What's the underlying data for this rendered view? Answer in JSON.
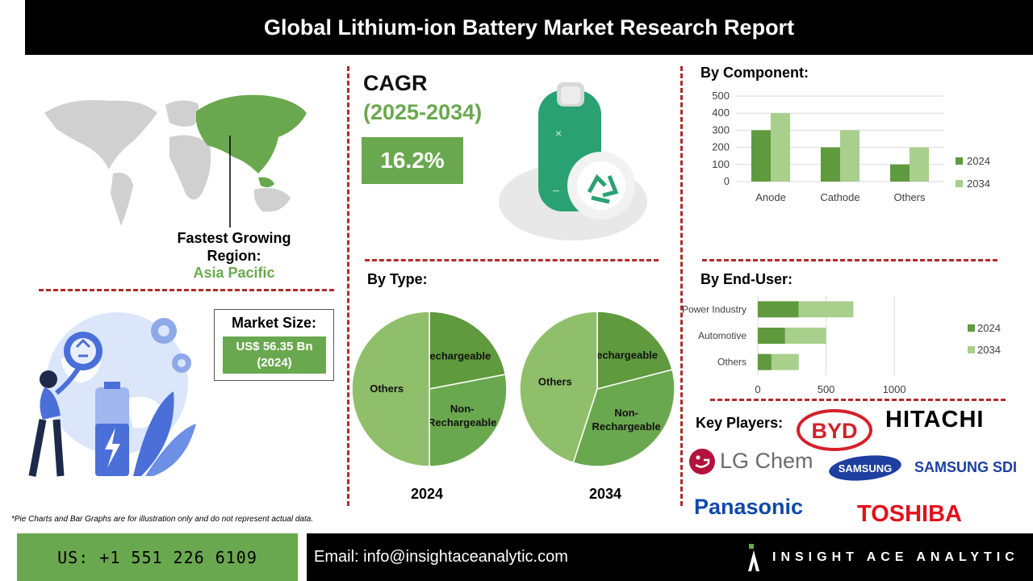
{
  "header": {
    "title": "Global Lithium-ion Battery Market Research Report"
  },
  "region": {
    "label": "Fastest Growing Region:",
    "value": "Asia Pacific"
  },
  "cagr": {
    "label": "CAGR",
    "years": "(2025-2034)",
    "value": "16.2%"
  },
  "market_size": {
    "label": "Market Size:",
    "value_line1": "US$ 56.35 Bn",
    "value_line2": "(2024)"
  },
  "disclaimer": "*Pie Charts and Bar Graphs are for illustration only and do not represent actual data.",
  "footer": {
    "phone": "US: +1 551 226 6109",
    "email": "Email: info@insightaceanalytic.com",
    "brand": "INSIGHT ACE ANALYTIC"
  },
  "key_players": {
    "label": "Key Players:",
    "logos": [
      "BYD",
      "HITACHI",
      "LG Chem",
      "SAMSUNG",
      "SAMSUNG SDI",
      "Panasonic",
      "TOSHIBA"
    ]
  },
  "colors": {
    "dark_green": "#5f9a3e",
    "mid_green": "#6aa84f",
    "light_green": "#a9cf8d",
    "pie_light": "#8fbf6a",
    "accent_red": "#b02a2a"
  },
  "chart_data": [
    {
      "type": "bar",
      "title": "By Component:",
      "categories": [
        "Anode",
        "Cathode",
        "Others"
      ],
      "series": [
        {
          "name": "2024",
          "values": [
            300,
            200,
            100
          ]
        },
        {
          "name": "2034",
          "values": [
            400,
            300,
            200
          ]
        }
      ],
      "yticks": [
        0,
        100,
        200,
        300,
        400,
        500
      ],
      "ylim": [
        0,
        500
      ],
      "grid": true,
      "legend": "right"
    },
    {
      "type": "pie",
      "title": "By Type:",
      "chart_label": "2024",
      "labels": [
        "Rechargeable",
        "Non-\nRechargeable",
        "Others"
      ],
      "values": [
        22,
        28,
        50
      ]
    },
    {
      "type": "pie",
      "title": "By Type:",
      "chart_label": "2034",
      "labels": [
        "Rechargeable",
        "Non-\nRechargeable",
        "Others"
      ],
      "values": [
        21,
        34,
        45
      ]
    },
    {
      "type": "bar",
      "orientation": "horizontal",
      "stacked": true,
      "title": "By End-User:",
      "categories": [
        "Power Industry",
        "Automotive",
        "Others"
      ],
      "series": [
        {
          "name": "2024",
          "values": [
            300,
            200,
            100
          ]
        },
        {
          "name": "2034",
          "values": [
            400,
            300,
            200
          ]
        }
      ],
      "xticks": [
        0,
        500,
        1000
      ],
      "xlim": [
        0,
        1200
      ],
      "grid": true,
      "legend": "right"
    }
  ]
}
